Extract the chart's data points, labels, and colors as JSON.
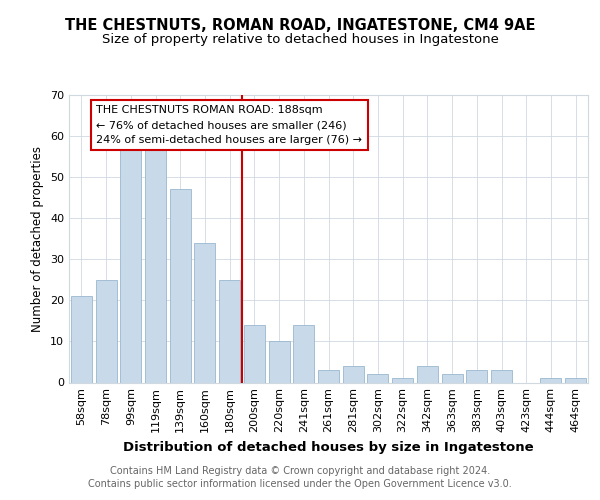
{
  "title": "THE CHESTNUTS, ROMAN ROAD, INGATESTONE, CM4 9AE",
  "subtitle": "Size of property relative to detached houses in Ingatestone",
  "xlabel": "Distribution of detached houses by size in Ingatestone",
  "ylabel": "Number of detached properties",
  "categories": [
    "58sqm",
    "78sqm",
    "99sqm",
    "119sqm",
    "139sqm",
    "160sqm",
    "180sqm",
    "200sqm",
    "220sqm",
    "241sqm",
    "261sqm",
    "281sqm",
    "302sqm",
    "322sqm",
    "342sqm",
    "363sqm",
    "383sqm",
    "403sqm",
    "423sqm",
    "444sqm",
    "464sqm"
  ],
  "values": [
    21,
    25,
    57,
    57,
    47,
    34,
    25,
    14,
    10,
    14,
    3,
    4,
    2,
    1,
    4,
    2,
    3,
    3,
    0,
    1,
    1
  ],
  "bar_color": "#c8daea",
  "bar_edge_color": "#9ab8d0",
  "vline_color": "#cc0000",
  "annotation_title": "THE CHESTNUTS ROMAN ROAD: 188sqm",
  "annotation_line1": "← 76% of detached houses are smaller (246)",
  "annotation_line2": "24% of semi-detached houses are larger (76) →",
  "annotation_box_facecolor": "#ffffff",
  "annotation_box_edgecolor": "#cc0000",
  "ylim": [
    0,
    70
  ],
  "yticks": [
    0,
    10,
    20,
    30,
    40,
    50,
    60,
    70
  ],
  "footer_line1": "Contains HM Land Registry data © Crown copyright and database right 2024.",
  "footer_line2": "Contains public sector information licensed under the Open Government Licence v3.0.",
  "bg_color": "#ffffff",
  "plot_bg_color": "#ffffff",
  "grid_color": "#d0d8e0",
  "title_fontsize": 10.5,
  "subtitle_fontsize": 9.5,
  "xlabel_fontsize": 9.5,
  "ylabel_fontsize": 8.5,
  "tick_fontsize": 8,
  "footer_fontsize": 7,
  "annotation_fontsize": 8
}
